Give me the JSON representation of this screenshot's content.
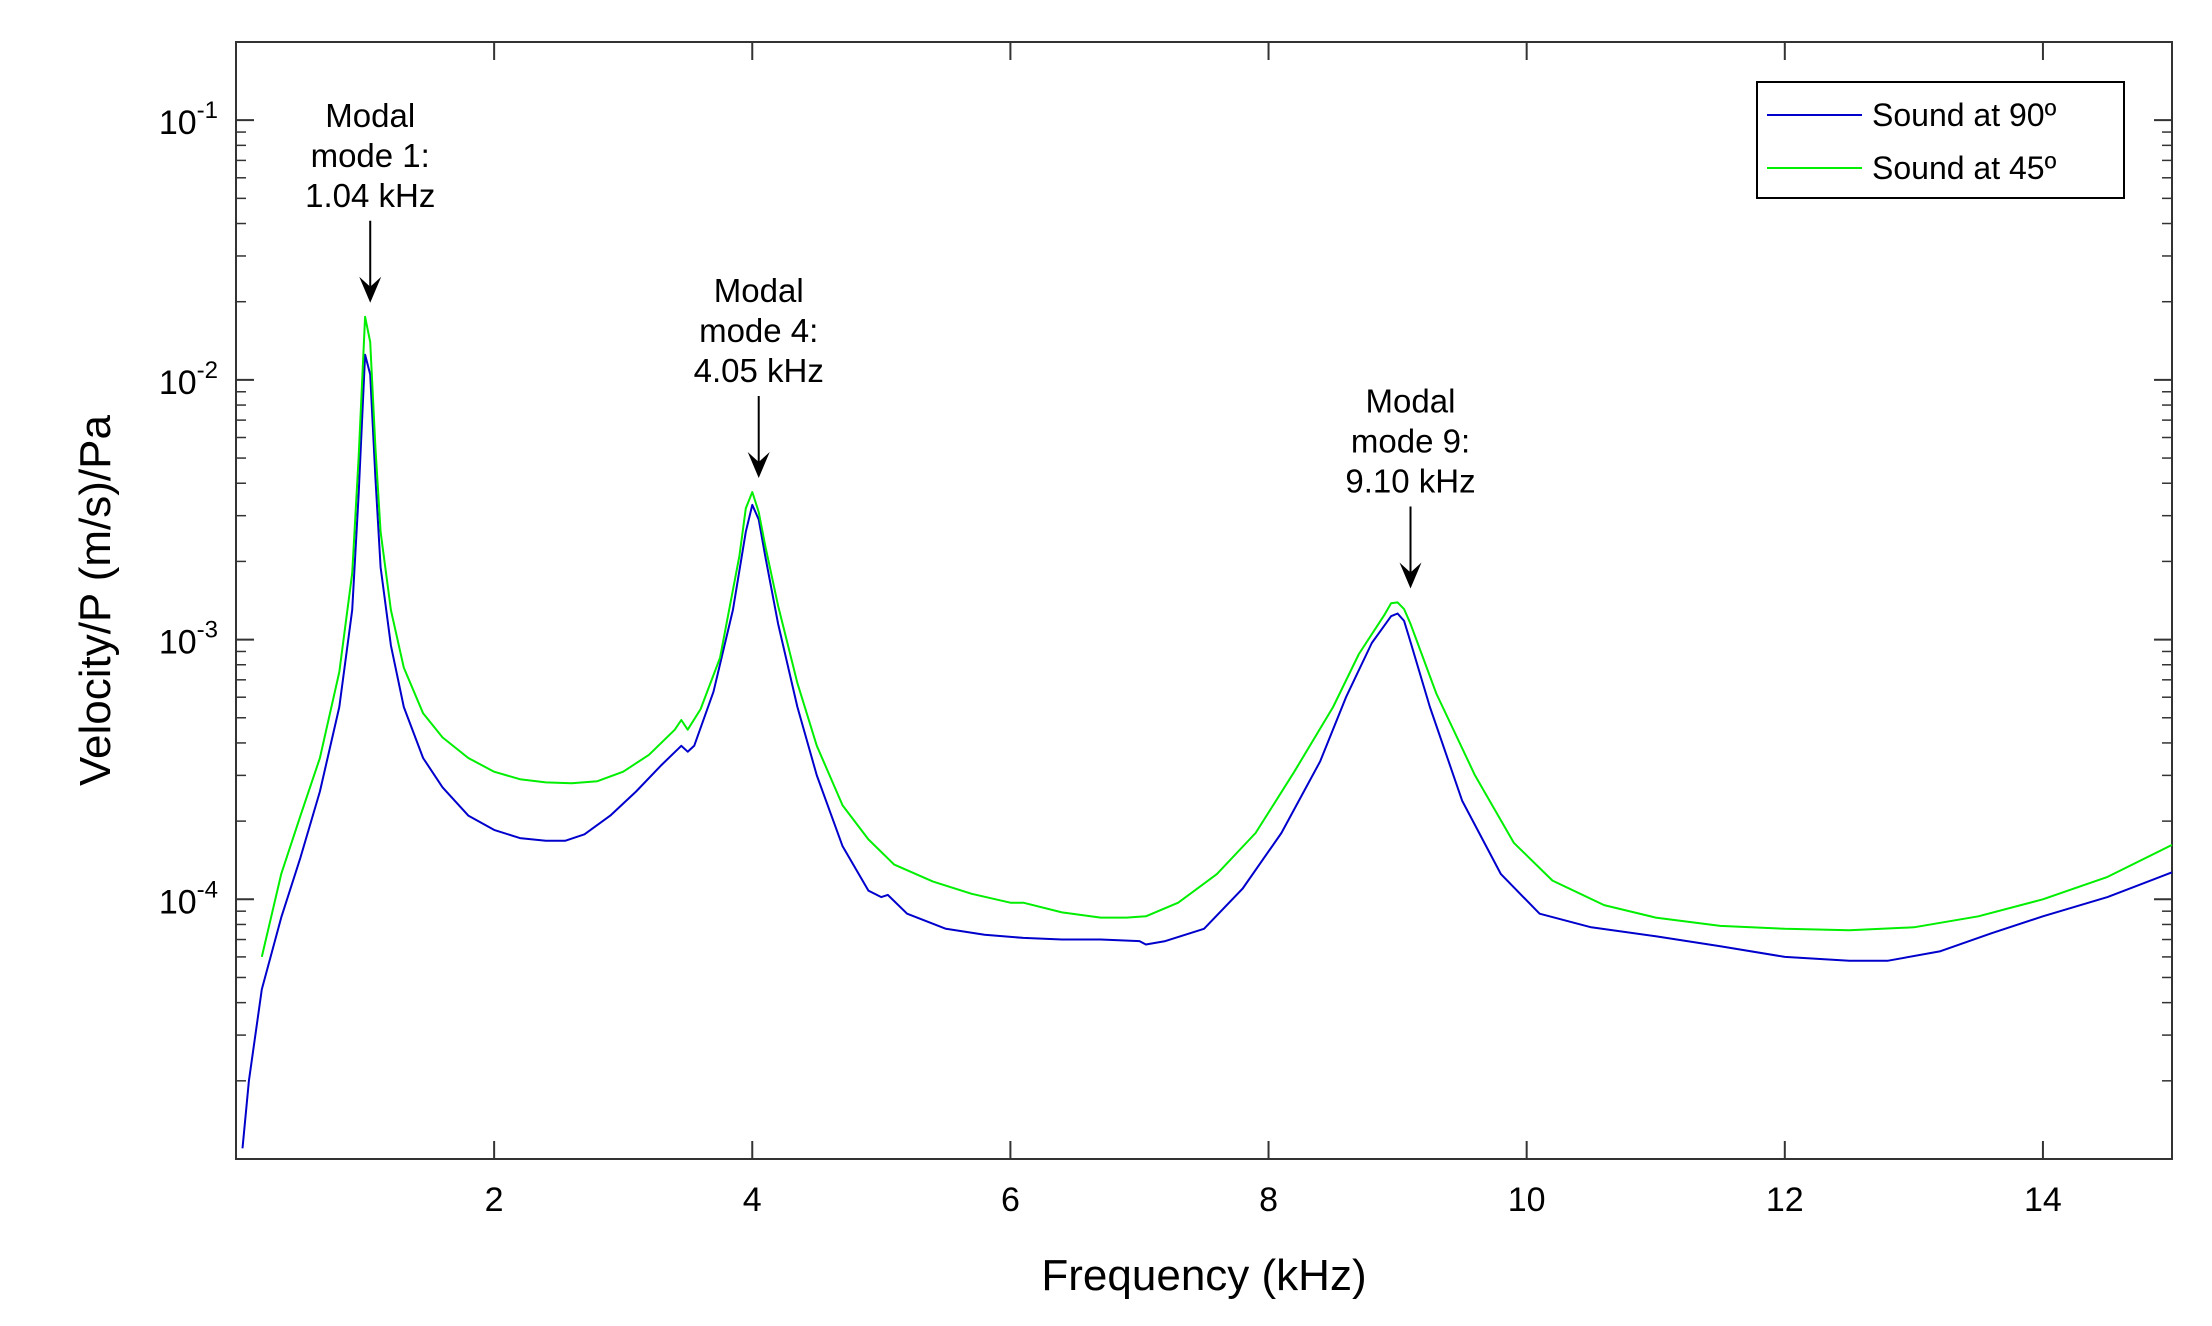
{
  "chart_data": {
    "type": "line",
    "title": "",
    "xlabel": "Frequency (kHz)",
    "ylabel": "Velocity/P (m/s)/Pa",
    "xscale": "linear",
    "yscale": "log",
    "xlim": [
      0,
      15
    ],
    "ylim": [
      1e-05,
      0.2
    ],
    "xticks": [
      {
        "value": 2,
        "label": "2"
      },
      {
        "value": 4,
        "label": "4"
      },
      {
        "value": 6,
        "label": "6"
      },
      {
        "value": 8,
        "label": "8"
      },
      {
        "value": 10,
        "label": "10"
      },
      {
        "value": 12,
        "label": "12"
      },
      {
        "value": 14,
        "label": "14"
      }
    ],
    "yticks": [
      {
        "value": 0.0001,
        "base": "10",
        "exp": "-4"
      },
      {
        "value": 0.001,
        "base": "10",
        "exp": "-3"
      },
      {
        "value": 0.01,
        "base": "10",
        "exp": "-2"
      },
      {
        "value": 0.1,
        "base": "10",
        "exp": "-1"
      }
    ],
    "legend": {
      "position": "top-right"
    },
    "series": [
      {
        "name": "Sound at 90º",
        "color": "#0000cc",
        "x": [
          0.05,
          0.1,
          0.2,
          0.35,
          0.5,
          0.65,
          0.8,
          0.9,
          0.95,
          1.0,
          1.04,
          1.08,
          1.12,
          1.2,
          1.3,
          1.45,
          1.6,
          1.8,
          2.0,
          2.2,
          2.4,
          2.55,
          2.7,
          2.9,
          3.1,
          3.3,
          3.45,
          3.5,
          3.55,
          3.7,
          3.85,
          3.95,
          4.0,
          4.05,
          4.1,
          4.2,
          4.35,
          4.5,
          4.7,
          4.9,
          5.0,
          5.05,
          5.2,
          5.5,
          5.8,
          6.1,
          6.4,
          6.7,
          7.0,
          7.05,
          7.2,
          7.5,
          7.8,
          8.1,
          8.4,
          8.6,
          8.8,
          8.95,
          9.0,
          9.05,
          9.1,
          9.25,
          9.5,
          9.8,
          10.1,
          10.5,
          11.0,
          11.5,
          12.0,
          12.5,
          12.8,
          13.2,
          13.6,
          14.0,
          14.5,
          15.0
        ],
        "values": [
          1.1e-05,
          2e-05,
          4.5e-05,
          8.5e-05,
          0.000145,
          0.00026,
          0.00055,
          0.0013,
          0.0036,
          0.0125,
          0.0105,
          0.0042,
          0.0019,
          0.00095,
          0.00055,
          0.00035,
          0.00027,
          0.00021,
          0.000185,
          0.000172,
          0.000168,
          0.000168,
          0.000178,
          0.00021,
          0.00026,
          0.00033,
          0.00039,
          0.00037,
          0.00039,
          0.00063,
          0.0013,
          0.0026,
          0.0033,
          0.0029,
          0.0021,
          0.00115,
          0.00055,
          0.0003,
          0.00016,
          0.000108,
          0.000102,
          0.000104,
          8.8e-05,
          7.7e-05,
          7.3e-05,
          7.1e-05,
          7e-05,
          7e-05,
          6.9e-05,
          6.7e-05,
          6.9e-05,
          7.7e-05,
          0.00011,
          0.00018,
          0.00034,
          0.0006,
          0.00097,
          0.00123,
          0.00126,
          0.00118,
          0.00098,
          0.00055,
          0.00024,
          0.000125,
          8.8e-05,
          7.8e-05,
          7.2e-05,
          6.6e-05,
          6e-05,
          5.8e-05,
          5.8e-05,
          6.3e-05,
          7.4e-05,
          8.6e-05,
          0.000102,
          0.000127
        ]
      },
      {
        "name": "Sound at 45º",
        "color": "#00ee00",
        "x": [
          0.2,
          0.35,
          0.5,
          0.65,
          0.8,
          0.9,
          0.95,
          1.0,
          1.04,
          1.08,
          1.12,
          1.2,
          1.3,
          1.45,
          1.6,
          1.8,
          2.0,
          2.2,
          2.4,
          2.6,
          2.8,
          3.0,
          3.2,
          3.4,
          3.45,
          3.5,
          3.6,
          3.75,
          3.9,
          3.95,
          4.0,
          4.05,
          4.1,
          4.2,
          4.35,
          4.5,
          4.7,
          4.9,
          5.1,
          5.4,
          5.7,
          6.0,
          6.1,
          6.4,
          6.7,
          6.9,
          7.05,
          7.3,
          7.6,
          7.9,
          8.2,
          8.5,
          8.7,
          8.9,
          8.95,
          9.0,
          9.05,
          9.1,
          9.3,
          9.6,
          9.9,
          10.2,
          10.6,
          11.0,
          11.5,
          12.0,
          12.5,
          13.0,
          13.5,
          14.0,
          14.5,
          15.0
        ],
        "values": [
          6e-05,
          0.000125,
          0.00021,
          0.00035,
          0.00075,
          0.0018,
          0.005,
          0.0175,
          0.014,
          0.0055,
          0.0026,
          0.0013,
          0.00078,
          0.00052,
          0.00042,
          0.00035,
          0.00031,
          0.00029,
          0.000282,
          0.00028,
          0.000285,
          0.00031,
          0.00036,
          0.00045,
          0.00049,
          0.00045,
          0.00054,
          0.00085,
          0.0021,
          0.0032,
          0.0037,
          0.0031,
          0.0023,
          0.00135,
          0.00068,
          0.00039,
          0.00023,
          0.00017,
          0.000136,
          0.000117,
          0.000105,
          9.7e-05,
          9.7e-05,
          8.9e-05,
          8.5e-05,
          8.5e-05,
          8.6e-05,
          9.7e-05,
          0.000125,
          0.00018,
          0.00031,
          0.00055,
          0.00088,
          0.00125,
          0.00138,
          0.00139,
          0.00131,
          0.00115,
          0.00062,
          0.0003,
          0.000165,
          0.000118,
          9.5e-05,
          8.5e-05,
          7.9e-05,
          7.7e-05,
          7.6e-05,
          7.8e-05,
          8.6e-05,
          0.0001,
          0.000122,
          0.000162
        ]
      }
    ],
    "annotations": [
      {
        "lines": [
          "Modal",
          "mode 1:",
          "1.04 kHz"
        ],
        "x": 1.04,
        "y": 0.0175
      },
      {
        "lines": [
          "Modal",
          "mode 4:",
          "4.05 kHz"
        ],
        "x": 4.05,
        "y": 0.0037
      },
      {
        "lines": [
          "Modal",
          "mode 9:",
          "9.10 kHz"
        ],
        "x": 9.1,
        "y": 0.00139
      }
    ]
  }
}
